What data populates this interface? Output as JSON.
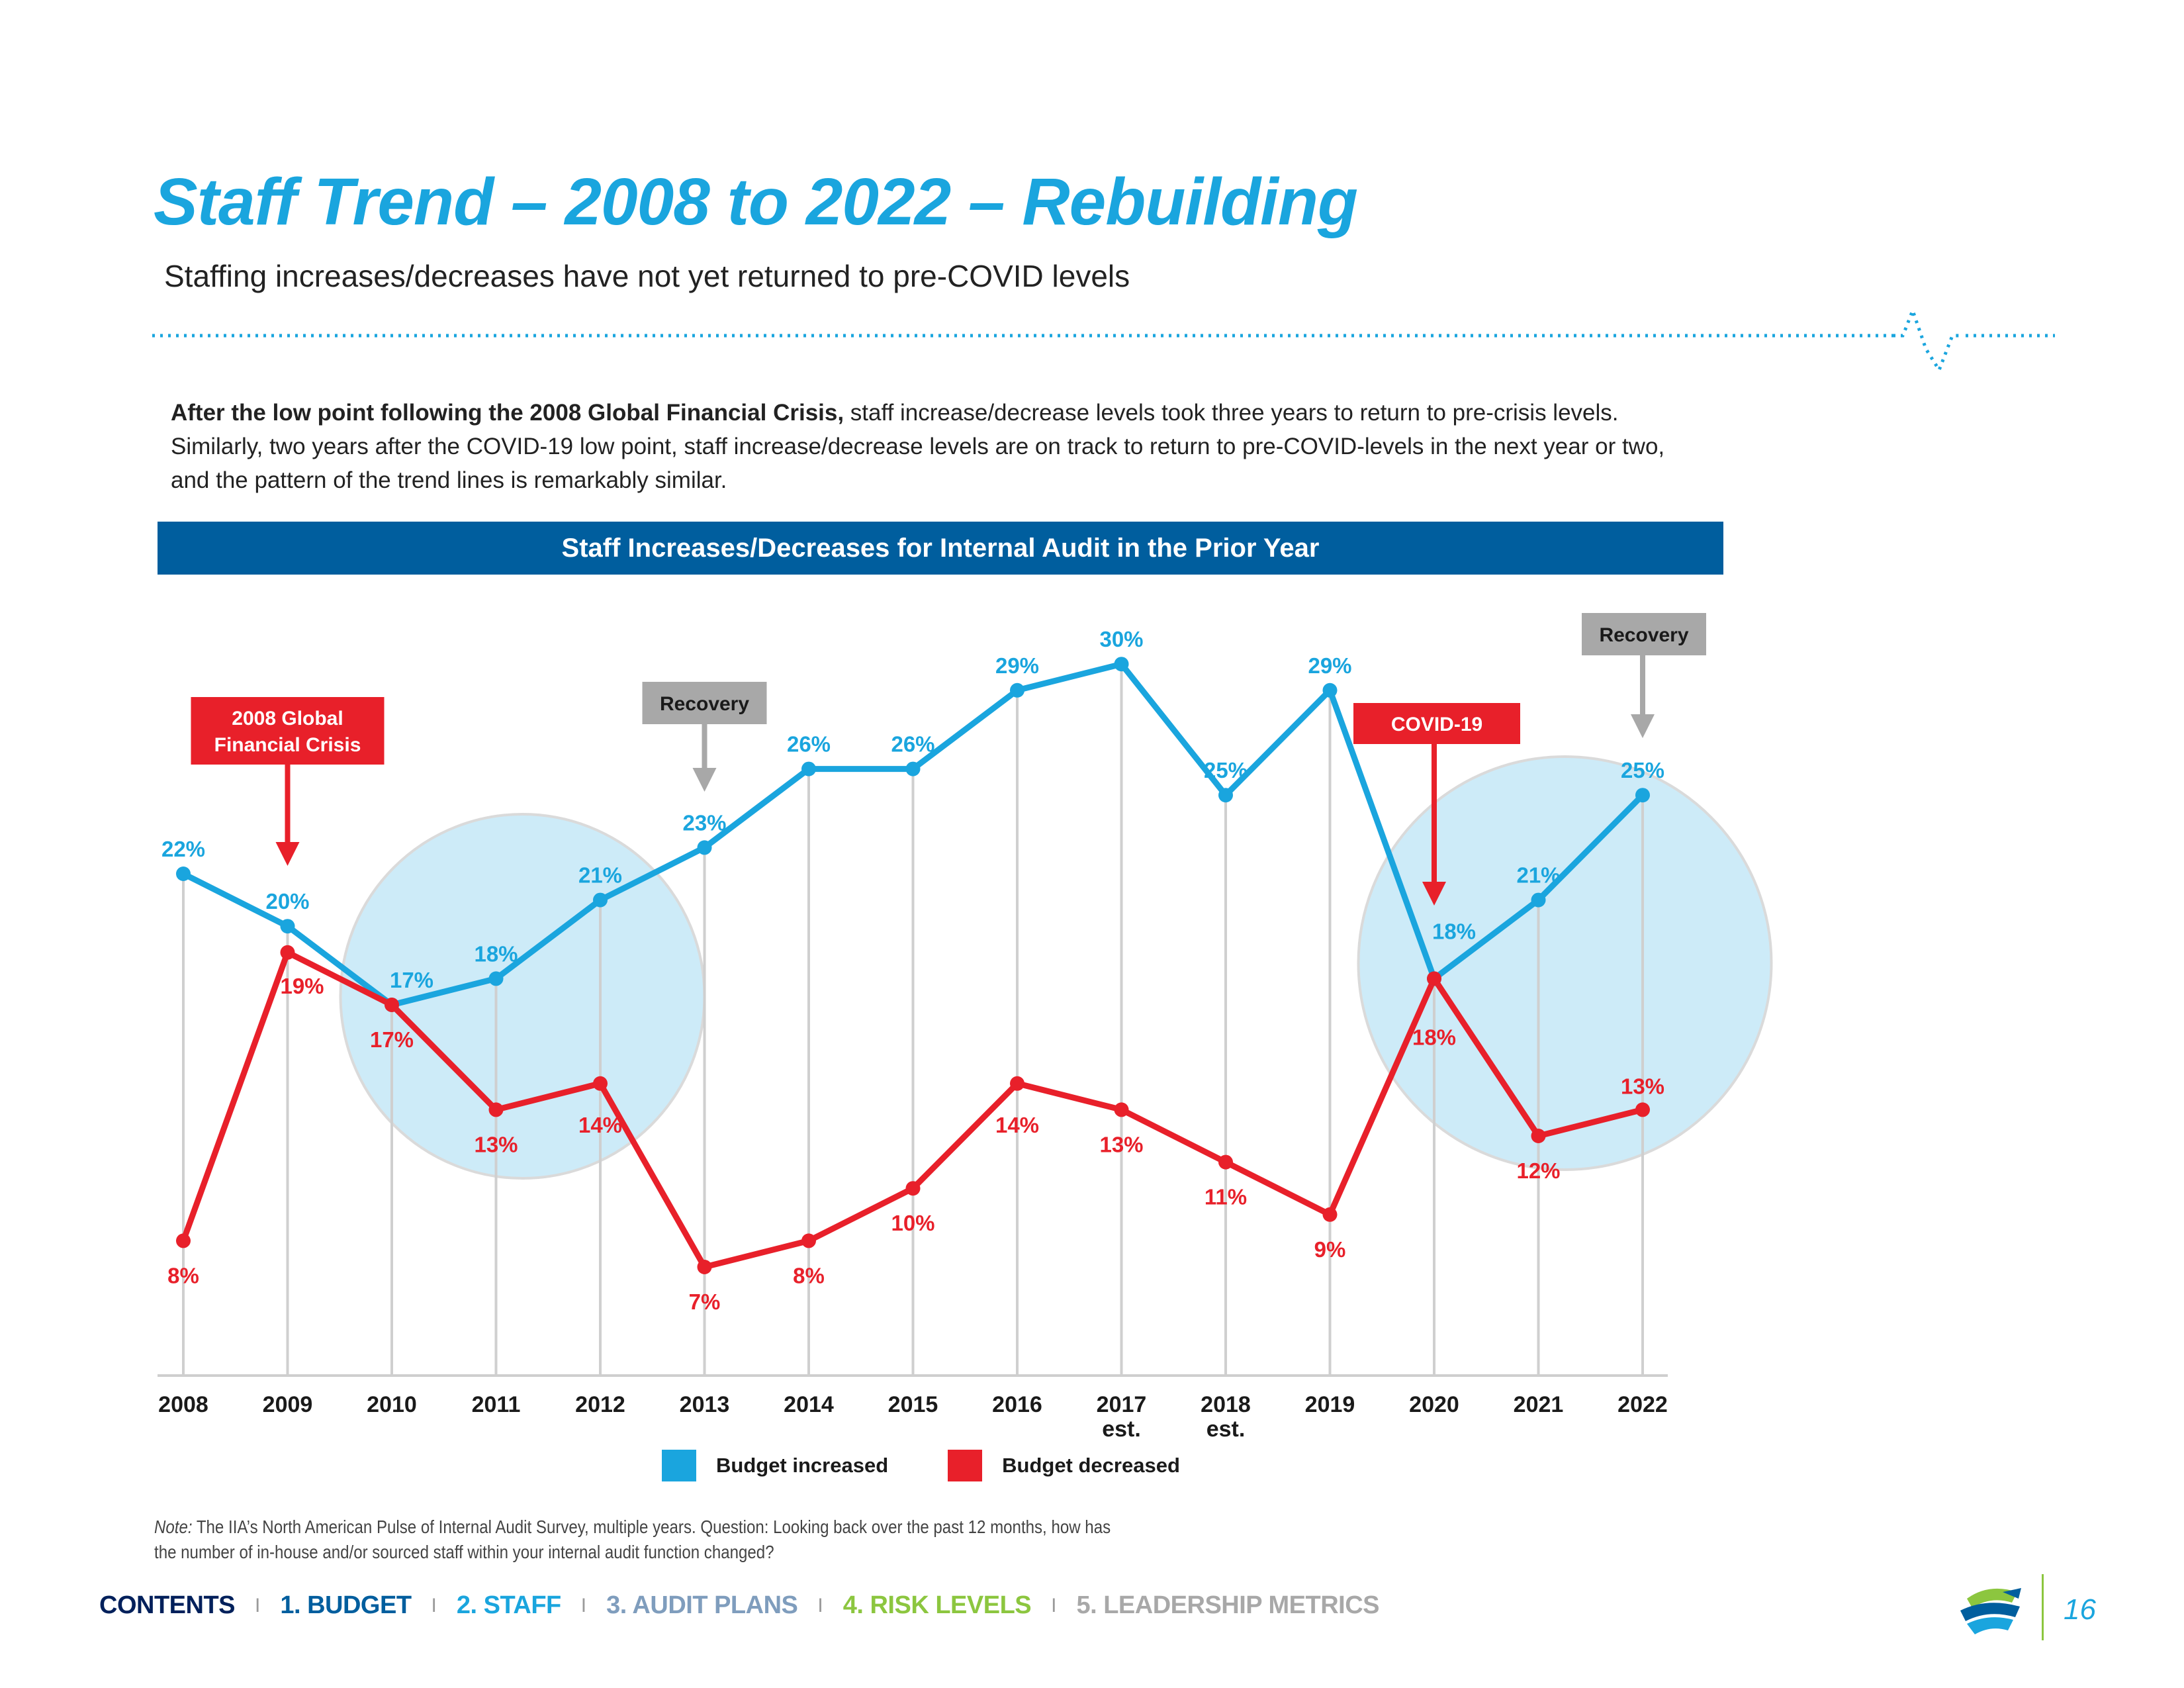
{
  "header": {
    "title": "Staff Trend – 2008 to 2022 – Rebuilding",
    "subtitle": "Staffing increases/decreases have not yet returned to pre-COVID levels"
  },
  "body": {
    "lead_bold": "After the low point following the 2008 Global Financial Crisis,",
    "lead_rest": " staff increase/decrease levels took three years to return to pre-crisis levels. Similarly, two years after the COVID-19 low point, staff increase/decrease levels are on track to return to pre-COVID-levels in the next year or two, and the pattern of the trend lines is remarkably similar."
  },
  "chart_data": {
    "type": "line",
    "title": "Staff Increases/Decreases for Internal Audit in the Prior Year",
    "categories": [
      "2008",
      "2009",
      "2010",
      "2011",
      "2012",
      "2013",
      "2014",
      "2015",
      "2016",
      "2017",
      "2018",
      "2019",
      "2020",
      "2021",
      "2022"
    ],
    "category_sublabels": [
      "",
      "",
      "",
      "",
      "",
      "",
      "",
      "",
      "",
      "est.",
      "est.",
      "",
      "",
      "",
      ""
    ],
    "series": [
      {
        "name": "Budget increased",
        "color": "#1aa5de",
        "values": [
          22,
          20,
          17,
          18,
          21,
          23,
          26,
          26,
          29,
          30,
          25,
          29,
          18,
          21,
          25
        ]
      },
      {
        "name": "Budget decreased",
        "color": "#e8202a",
        "values": [
          8,
          19,
          17,
          13,
          14,
          7,
          8,
          10,
          14,
          13,
          11,
          9,
          18,
          12,
          13
        ]
      }
    ],
    "ylim": [
      0,
      35
    ],
    "xlabel": "",
    "ylabel": "",
    "value_suffix": "%",
    "annotations": [
      {
        "text": "2008 Global Financial Crisis",
        "category": "2009",
        "color": "#e8202a"
      },
      {
        "text": "Recovery",
        "category": "2013",
        "color": "#a8a8a8"
      },
      {
        "text": "COVID-19",
        "category": "2020",
        "color": "#e8202a"
      },
      {
        "text": "Recovery",
        "category": "2022",
        "color": "#a8a8a8"
      }
    ],
    "highlight_periods": [
      {
        "center_category": "2011"
      },
      {
        "center_category": "2021"
      }
    ],
    "legend_position": "bottom"
  },
  "note": {
    "prefix": "Note:",
    "text": " The IIA’s North American Pulse of Internal Audit Survey, multiple years. Question: Looking back over the past 12 months, how has the number of in-house and/or sourced staff within your internal audit function changed?"
  },
  "footer": {
    "nav": [
      {
        "label": "CONTENTS",
        "color": "#00205b"
      },
      {
        "label": "1. BUDGET",
        "color": "#005e9e"
      },
      {
        "label": "2. STAFF",
        "color": "#1aa5de"
      },
      {
        "label": "3. AUDIT PLANS",
        "color": "#7f9dbd"
      },
      {
        "label": "4. RISK LEVELS",
        "color": "#8cc63f"
      },
      {
        "label": "5. LEADERSHIP METRICS",
        "color": "#a8a8a8"
      }
    ],
    "separator": "I",
    "page_number": "16"
  },
  "colors": {
    "accent": "#1aa5de",
    "header_bar": "#005e9e",
    "decrease": "#e8202a",
    "callout_gray": "#a8a8a8"
  }
}
